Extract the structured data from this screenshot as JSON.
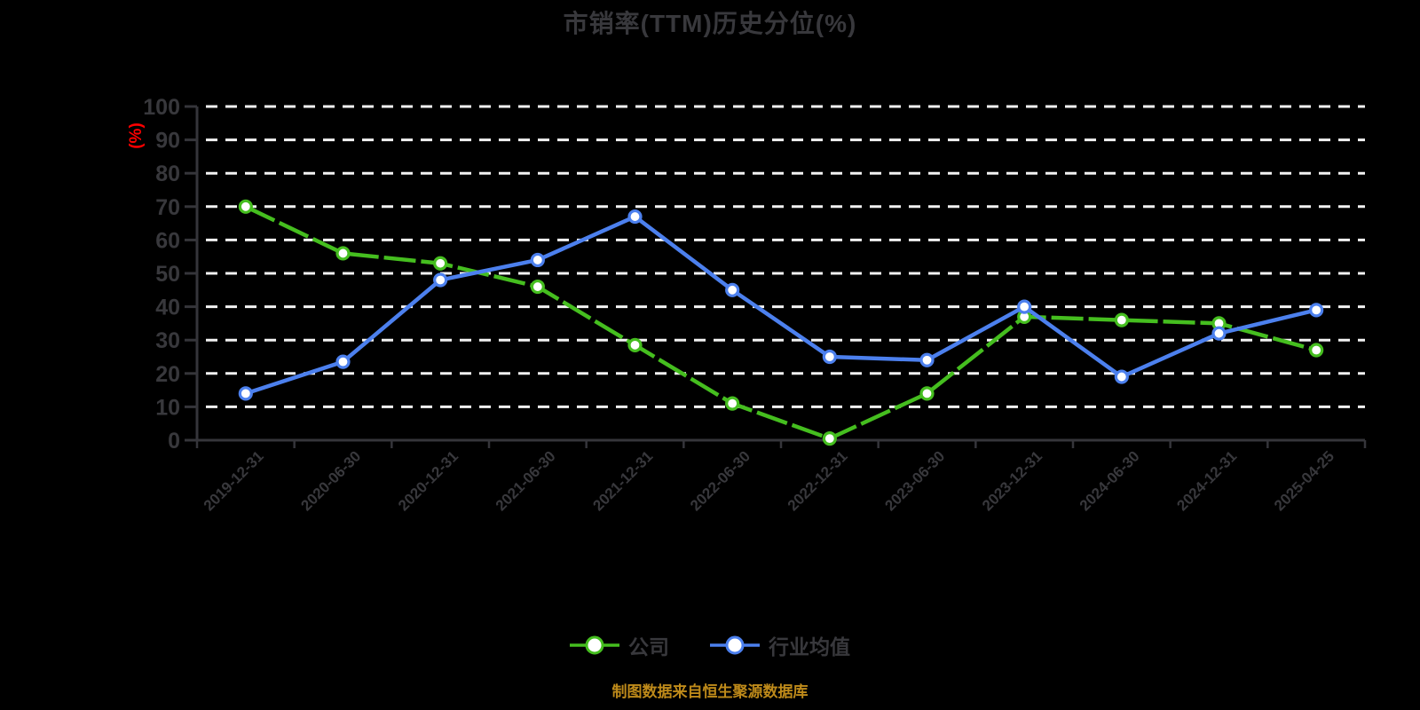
{
  "chart": {
    "title": "市销率(TTM)历史分位(%)",
    "y_axis_unit": "(%)"
  },
  "caption": {
    "text": "制图数据来自恒生聚源数据库",
    "color": "#BE8A1A"
  },
  "colors": {
    "background": "#000000",
    "text": "#38383C",
    "axis": "#35353A",
    "gridline": "#F2F2F2",
    "unit_label": "#FF0000",
    "marker_fill": "#FFFFFF"
  },
  "chart_data": {
    "type": "line",
    "title": "市销率(TTM)历史分位(%)",
    "categories": [
      "2019-12-31",
      "2020-06-30",
      "2020-12-31",
      "2021-06-30",
      "2021-12-31",
      "2022-06-30",
      "2022-12-31",
      "2023-06-30",
      "2023-12-31",
      "2024-06-30",
      "2024-12-31",
      "2025-04-25"
    ],
    "series": [
      {
        "key": "company",
        "name": "公司",
        "color": "#45BE1F",
        "line_style": "dashed",
        "values": [
          70,
          56,
          53,
          46,
          28.5,
          11,
          0.5,
          14,
          37,
          36,
          35,
          27
        ]
      },
      {
        "key": "industry-average",
        "name": "行业均值",
        "color": "#4C80EE",
        "line_style": "solid",
        "values": [
          14,
          23.5,
          48,
          54,
          67,
          45,
          25,
          24,
          40,
          19,
          32,
          39
        ]
      }
    ],
    "xlabel": "",
    "ylabel": "(%)",
    "ylim": [
      0,
      100
    ],
    "y_ticks": [
      0,
      10,
      20,
      30,
      40,
      50,
      60,
      70,
      80,
      90,
      100
    ],
    "grid": "horizontal-dashed",
    "legend_position": "bottom"
  }
}
